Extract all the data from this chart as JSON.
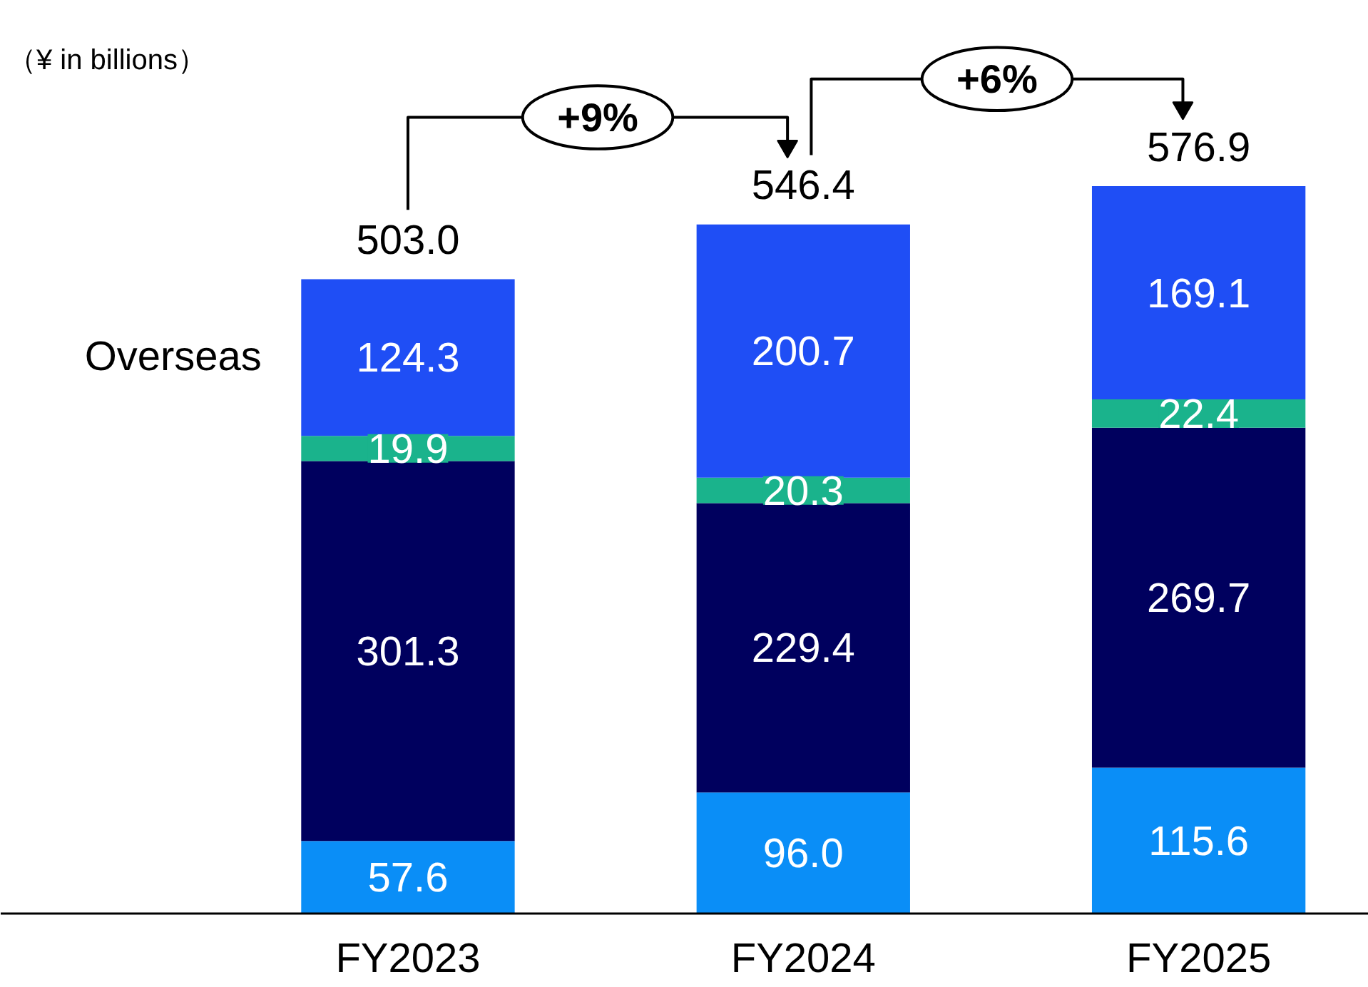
{
  "chart_data": {
    "type": "bar",
    "stacked": true,
    "categories": [
      "FY2023",
      "FY2024",
      "FY2025"
    ],
    "series": [
      {
        "color": "#0a8ef7",
        "values": [
          57.6,
          96.0,
          115.6
        ],
        "value_labels": [
          "57.6",
          "96.0",
          "115.6"
        ]
      },
      {
        "color": "#00005e",
        "values": [
          301.3,
          229.4,
          269.7
        ],
        "value_labels": [
          "301.3",
          "229.4",
          "269.7"
        ]
      },
      {
        "color": "#1ab38c",
        "values": [
          19.9,
          20.3,
          22.4
        ],
        "value_labels": [
          "19.9",
          "20.3",
          "22.4"
        ]
      },
      {
        "name": "Overseas",
        "color": "#1f4ef5",
        "values": [
          124.3,
          200.7,
          169.1
        ],
        "value_labels": [
          "124.3",
          "200.7",
          "169.1"
        ]
      }
    ],
    "totals": [
      "503.0",
      "546.4",
      "576.9"
    ],
    "annotations": [
      "（¥ in billions）",
      "+9%",
      "+6%"
    ]
  }
}
